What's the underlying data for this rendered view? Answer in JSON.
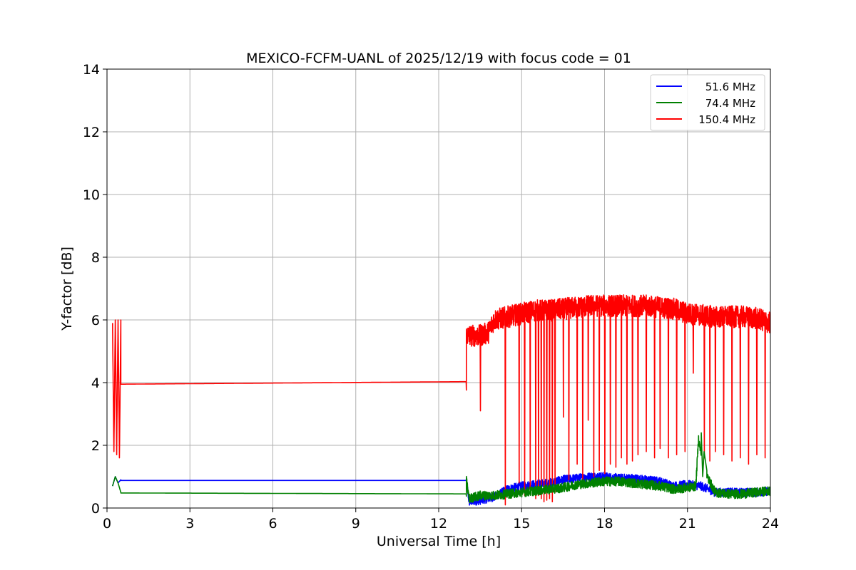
{
  "chart_data": {
    "type": "line",
    "title": "MEXICO-FCFM-UANL of 2025/12/19 with focus code = 01",
    "xlabel": "Universal Time [h]",
    "ylabel": "Y-factor [dB]",
    "xlim": [
      0,
      24
    ],
    "ylim": [
      0,
      14
    ],
    "xticks": [
      0,
      3,
      6,
      9,
      12,
      15,
      18,
      21,
      24
    ],
    "yticks": [
      0,
      2,
      4,
      6,
      8,
      10,
      12,
      14
    ],
    "grid": true,
    "legend_position": "top-right",
    "series": [
      {
        "name": "51.6 MHz",
        "color": "#0000ff",
        "x": [
          0.2,
          0.3,
          0.4,
          0.5,
          0.5,
          13.0,
          13.0,
          13.1,
          13.5,
          14.0,
          14.5,
          15.0,
          15.5,
          16.0,
          16.5,
          17.0,
          17.5,
          18.0,
          18.5,
          19.0,
          19.5,
          20.0,
          20.5,
          21.0,
          21.5,
          22.0,
          22.5,
          23.0,
          23.5,
          24.0
        ],
        "y": [
          0.7,
          1.0,
          0.8,
          0.9,
          0.88,
          0.88,
          0.9,
          0.2,
          0.25,
          0.35,
          0.6,
          0.7,
          0.75,
          0.8,
          0.9,
          0.95,
          1.0,
          1.0,
          0.95,
          0.95,
          0.9,
          0.85,
          0.7,
          0.75,
          0.7,
          0.5,
          0.5,
          0.5,
          0.5,
          0.55
        ]
      },
      {
        "name": "74.4 MHz",
        "color": "#008000",
        "x": [
          0.2,
          0.3,
          0.4,
          0.5,
          0.5,
          13.0,
          13.0,
          13.1,
          13.5,
          14.0,
          14.5,
          15.0,
          15.5,
          16.0,
          16.5,
          17.0,
          17.5,
          18.0,
          18.5,
          19.0,
          19.5,
          20.0,
          20.5,
          21.0,
          21.3,
          21.4,
          21.6,
          22.0,
          22.5,
          23.0,
          23.5,
          24.0
        ],
        "y": [
          0.7,
          1.0,
          0.8,
          0.5,
          0.48,
          0.45,
          0.9,
          0.3,
          0.4,
          0.4,
          0.45,
          0.5,
          0.55,
          0.6,
          0.65,
          0.75,
          0.8,
          0.85,
          0.85,
          0.8,
          0.75,
          0.7,
          0.6,
          0.65,
          0.7,
          2.2,
          1.2,
          0.5,
          0.45,
          0.45,
          0.5,
          0.55
        ]
      },
      {
        "name": "150.4 MHz",
        "color": "#ff0000",
        "x": [
          0.2,
          0.25,
          0.3,
          0.35,
          0.4,
          0.45,
          0.5,
          0.5,
          13.0,
          13.0,
          13.5,
          13.8,
          14.0,
          14.5,
          15.0,
          15.5,
          16.0,
          16.5,
          17.0,
          17.5,
          18.0,
          18.5,
          19.0,
          19.5,
          20.0,
          20.5,
          21.0,
          21.5,
          22.0,
          22.5,
          23.0,
          23.5,
          24.0
        ],
        "y": [
          5.9,
          1.8,
          6.0,
          1.7,
          6.0,
          1.6,
          6.0,
          3.95,
          4.03,
          5.5,
          5.5,
          5.6,
          6.0,
          6.1,
          6.2,
          6.3,
          6.3,
          6.35,
          6.4,
          6.45,
          6.45,
          6.45,
          6.45,
          6.45,
          6.4,
          6.35,
          6.2,
          6.15,
          6.1,
          6.1,
          6.1,
          6.05,
          5.9
        ]
      }
    ],
    "dropouts_150": {
      "x": [
        13.5,
        14.4,
        14.9,
        15.1,
        15.3,
        15.5,
        15.6,
        15.7,
        15.8,
        15.9,
        16.0,
        16.1,
        16.2,
        16.5,
        16.7,
        17.0,
        17.2,
        17.4,
        17.6,
        17.8,
        18.0,
        18.2,
        18.4,
        18.6,
        18.8,
        19.0,
        19.2,
        19.5,
        19.8,
        20.0,
        20.3,
        20.6,
        20.9,
        21.2,
        21.6,
        21.8,
        22.0,
        22.3,
        22.6,
        22.9,
        23.2,
        23.5,
        23.8
      ],
      "y": [
        3.1,
        0.1,
        0.8,
        0.4,
        0.6,
        0.3,
        0.4,
        0.3,
        0.2,
        0.25,
        0.3,
        0.2,
        0.5,
        2.9,
        0.9,
        1.4,
        0.9,
        2.8,
        1.0,
        1.2,
        1.1,
        1.4,
        1.3,
        1.6,
        1.4,
        1.5,
        1.7,
        1.8,
        1.6,
        1.9,
        1.6,
        1.7,
        1.8,
        4.3,
        1.6,
        1.5,
        1.8,
        1.7,
        1.5,
        1.6,
        1.4,
        1.7,
        1.6
      ]
    },
    "spike_74": {
      "x": [
        21.5,
        21.55,
        21.6,
        21.7
      ],
      "y": [
        2.4,
        1.0,
        1.8,
        1.2
      ]
    }
  }
}
